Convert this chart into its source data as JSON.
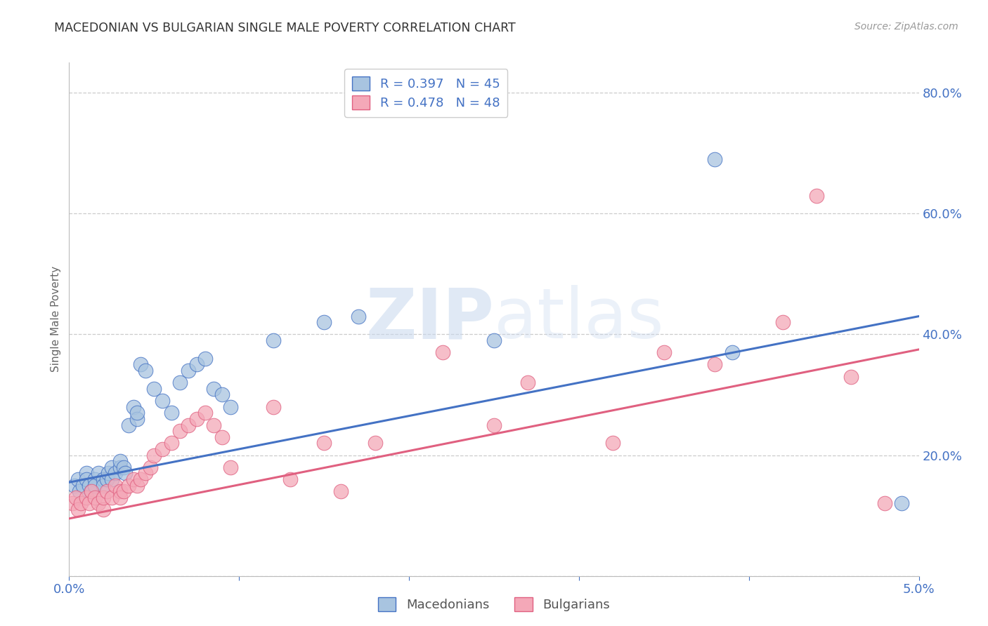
{
  "title": "MACEDONIAN VS BULGARIAN SINGLE MALE POVERTY CORRELATION CHART",
  "source": "Source: ZipAtlas.com",
  "ylabel": "Single Male Poverty",
  "xlim": [
    0.0,
    0.05
  ],
  "ylim": [
    0.0,
    0.85
  ],
  "yticks": [
    0.0,
    0.2,
    0.4,
    0.6,
    0.8
  ],
  "ytick_labels": [
    "",
    "20.0%",
    "40.0%",
    "60.0%",
    "80.0%"
  ],
  "xticks": [
    0.0,
    0.01,
    0.02,
    0.03,
    0.04,
    0.05
  ],
  "xtick_labels": [
    "0.0%",
    "",
    "",
    "",
    "",
    "5.0%"
  ],
  "macedonian_R": 0.397,
  "macedonian_N": 45,
  "bulgarian_R": 0.478,
  "bulgarian_N": 48,
  "macedonian_color": "#a8c4e0",
  "bulgarian_color": "#f4a8b8",
  "macedonian_line_color": "#4472c4",
  "bulgarian_line_color": "#e06080",
  "background_color": "#ffffff",
  "grid_color": "#cccccc",
  "tick_label_color": "#4472c4",
  "watermark_zip": "ZIP",
  "watermark_atlas": "atlas",
  "macedonians_x": [
    0.0003,
    0.0005,
    0.0006,
    0.0008,
    0.001,
    0.001,
    0.0012,
    0.0013,
    0.0015,
    0.0015,
    0.0017,
    0.002,
    0.002,
    0.0022,
    0.0023,
    0.0025,
    0.0025,
    0.0027,
    0.003,
    0.003,
    0.0032,
    0.0033,
    0.0035,
    0.0038,
    0.004,
    0.004,
    0.0042,
    0.0045,
    0.005,
    0.0055,
    0.006,
    0.0065,
    0.007,
    0.0075,
    0.008,
    0.0085,
    0.009,
    0.0095,
    0.012,
    0.015,
    0.017,
    0.025,
    0.038,
    0.039,
    0.049
  ],
  "macedonians_y": [
    0.15,
    0.16,
    0.14,
    0.15,
    0.17,
    0.16,
    0.15,
    0.14,
    0.16,
    0.15,
    0.17,
    0.16,
    0.15,
    0.16,
    0.17,
    0.16,
    0.18,
    0.17,
    0.18,
    0.19,
    0.18,
    0.17,
    0.25,
    0.28,
    0.26,
    0.27,
    0.35,
    0.34,
    0.31,
    0.29,
    0.27,
    0.32,
    0.34,
    0.35,
    0.36,
    0.31,
    0.3,
    0.28,
    0.39,
    0.42,
    0.43,
    0.39,
    0.69,
    0.37,
    0.12
  ],
  "bulgarians_x": [
    0.0002,
    0.0004,
    0.0005,
    0.0007,
    0.001,
    0.0012,
    0.0013,
    0.0015,
    0.0017,
    0.002,
    0.002,
    0.0022,
    0.0025,
    0.0027,
    0.003,
    0.003,
    0.0032,
    0.0035,
    0.0038,
    0.004,
    0.0042,
    0.0045,
    0.0048,
    0.005,
    0.0055,
    0.006,
    0.0065,
    0.007,
    0.0075,
    0.008,
    0.0085,
    0.009,
    0.012,
    0.015,
    0.018,
    0.022,
    0.025,
    0.027,
    0.032,
    0.035,
    0.038,
    0.042,
    0.044,
    0.046,
    0.048,
    0.0095,
    0.013,
    0.016
  ],
  "bulgarians_y": [
    0.12,
    0.13,
    0.11,
    0.12,
    0.13,
    0.12,
    0.14,
    0.13,
    0.12,
    0.11,
    0.13,
    0.14,
    0.13,
    0.15,
    0.14,
    0.13,
    0.14,
    0.15,
    0.16,
    0.15,
    0.16,
    0.17,
    0.18,
    0.2,
    0.21,
    0.22,
    0.24,
    0.25,
    0.26,
    0.27,
    0.25,
    0.23,
    0.28,
    0.22,
    0.22,
    0.37,
    0.25,
    0.32,
    0.22,
    0.37,
    0.35,
    0.42,
    0.63,
    0.33,
    0.12,
    0.18,
    0.16,
    0.14
  ]
}
